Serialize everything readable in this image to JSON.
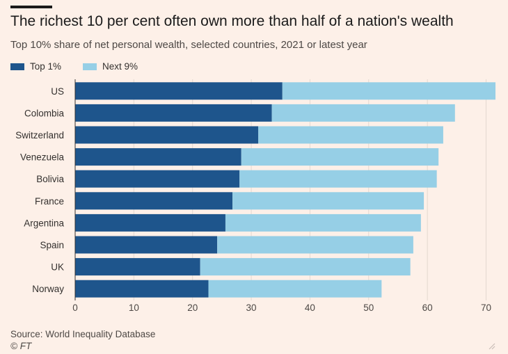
{
  "header": {
    "title": "The richest 10 per cent often own more than half of a nation's wealth",
    "subtitle": "Top 10% share of net personal wealth, selected countries, 2021 or latest year"
  },
  "footer": {
    "source": "Source: World Inequality Database",
    "copyright": "© FT"
  },
  "colors": {
    "top1": "#1e558c",
    "next9": "#96cfe6",
    "background": "#fdf0e8",
    "gridline": "#e3d8d0"
  },
  "icons": [
    "resize-grip-icon"
  ],
  "chart_data": {
    "type": "bar",
    "orientation": "horizontal",
    "stacked": true,
    "title": "The richest 10 per cent often own more than half of a nation's wealth",
    "subtitle": "Top 10% share of net personal wealth, selected countries, 2021 or latest year",
    "xlabel": "",
    "ylabel": "",
    "categories": [
      "US",
      "Colombia",
      "Switzerland",
      "Venezuela",
      "Bolivia",
      "France",
      "Argentina",
      "Spain",
      "UK",
      "Norway"
    ],
    "series": [
      {
        "name": "Top 1%",
        "values": [
          35.3,
          33.5,
          31.2,
          28.3,
          28.0,
          26.8,
          25.6,
          24.2,
          21.3,
          22.7
        ]
      },
      {
        "name": "Next 9%",
        "values": [
          36.3,
          31.2,
          31.5,
          33.6,
          33.6,
          32.6,
          33.3,
          33.4,
          35.8,
          29.5
        ]
      }
    ],
    "xlim": [
      0,
      72
    ],
    "xticks": [
      0,
      10,
      20,
      30,
      40,
      50,
      60,
      70
    ],
    "grid": true,
    "legend_position": "top-left"
  }
}
